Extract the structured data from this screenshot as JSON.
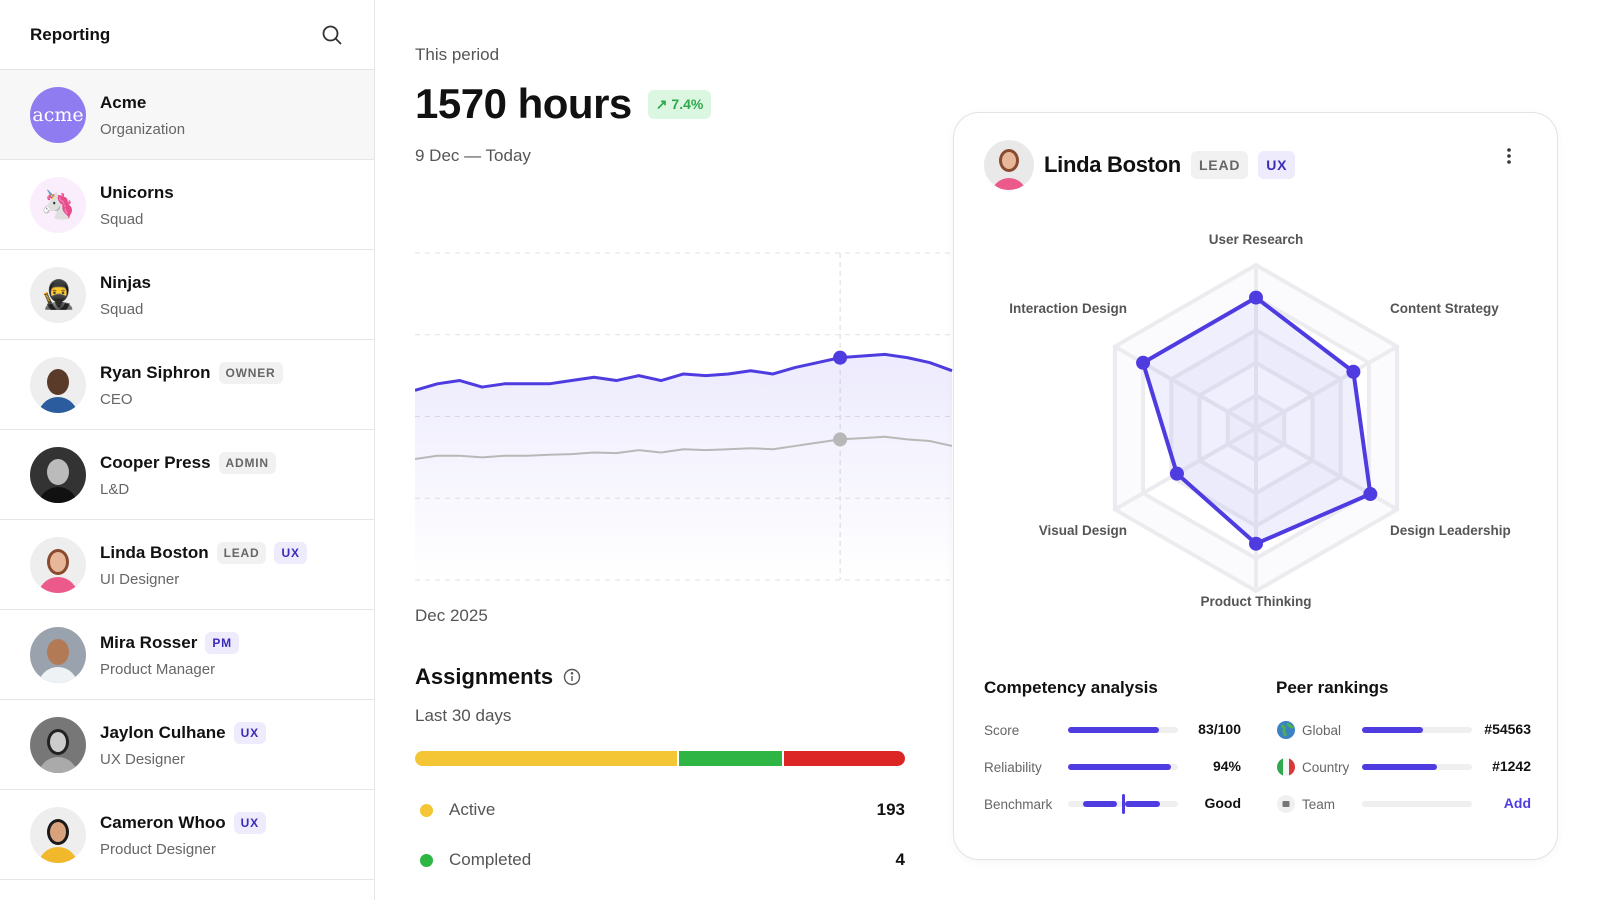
{
  "sidebar": {
    "title": "Reporting",
    "items": [
      {
        "name": "Acme",
        "subtitle": "Organization",
        "avatar_text": "acme",
        "badges": []
      },
      {
        "name": "Unicorns",
        "subtitle": "Squad",
        "avatar_icon": "🦄",
        "badges": []
      },
      {
        "name": "Ninjas",
        "subtitle": "Squad",
        "avatar_icon": "🥷",
        "badges": []
      },
      {
        "name": "Ryan Siphron",
        "subtitle": "CEO",
        "badges": [
          "OWNER"
        ]
      },
      {
        "name": "Cooper Press",
        "subtitle": "L&D",
        "badges": [
          "ADMIN"
        ]
      },
      {
        "name": "Linda Boston",
        "subtitle": "UI Designer",
        "badges": [
          "LEAD",
          "UX"
        ]
      },
      {
        "name": "Mira Rosser",
        "subtitle": "Product Manager",
        "badges": [
          "PM"
        ]
      },
      {
        "name": "Jaylon Culhane",
        "subtitle": "UX Designer",
        "badges": [
          "UX"
        ]
      },
      {
        "name": "Cameron Whoo",
        "subtitle": "Product Designer",
        "badges": [
          "UX"
        ]
      }
    ]
  },
  "main": {
    "period_label": "This period",
    "total": "1570 hours",
    "trend": "7.4%",
    "date_range": "9 Dec — Today",
    "chart_month": "Dec 2025",
    "assignments": {
      "title": "Assignments",
      "subtitle": "Last 30 days",
      "segments": [
        {
          "color": "#f4c534",
          "fraction": 0.54
        },
        {
          "color": "#2fb544",
          "fraction": 0.21
        },
        {
          "color": "#dc2626",
          "fraction": 0.25
        }
      ],
      "legend": [
        {
          "label": "Active",
          "value": "193",
          "color": "#f4c534"
        },
        {
          "label": "Completed",
          "value": "4",
          "color": "#2fb544"
        }
      ]
    }
  },
  "chart_data": {
    "type": "area",
    "xlabel": "Dec 2025",
    "ylim": [
      0,
      100
    ],
    "grid": true,
    "highlight_index": 19,
    "series": [
      {
        "color": "#4f3ce0",
        "values": [
          58,
          60,
          61,
          59,
          60,
          60,
          60,
          61,
          62,
          61,
          62.5,
          61,
          63,
          62.5,
          63,
          64,
          63,
          65,
          66.5,
          68,
          68.5,
          69,
          68,
          66.5,
          64
        ]
      },
      {
        "color": "#b8b8b8",
        "values": [
          37,
          38,
          38,
          37.5,
          38,
          38,
          38.3,
          38.5,
          39,
          38.8,
          39.7,
          39,
          40,
          39.7,
          40,
          40.3,
          40,
          41,
          42,
          43,
          43.4,
          43.8,
          43,
          42.5,
          41
        ]
      }
    ]
  },
  "profile": {
    "name": "Linda Boston",
    "badges": [
      "LEAD",
      "UX"
    ],
    "radar": {
      "type": "radar",
      "axes": [
        "User Research",
        "Content Strategy",
        "Design Leadership",
        "Product Thinking",
        "Visual Design",
        "Interaction Design"
      ],
      "values": [
        0.8,
        0.69,
        0.81,
        0.71,
        0.56,
        0.8
      ],
      "rings": 5,
      "color": "#4f3ce0"
    },
    "competency": {
      "title": "Competency analysis",
      "rows": [
        {
          "label": "Score",
          "value": "83/100",
          "fraction": 0.83
        },
        {
          "label": "Reliability",
          "value": "94%",
          "fraction": 0.94
        },
        {
          "label": "Benchmark",
          "value": "Good",
          "fraction": 0.5
        }
      ]
    },
    "peer": {
      "title": "Peer rankings",
      "rows": [
        {
          "label": "Global",
          "value": "#54563",
          "fraction": 0.55,
          "icon": "globe-icon"
        },
        {
          "label": "Country",
          "value": "#1242",
          "fraction": 0.68,
          "icon": "italy-flag-icon"
        },
        {
          "label": "Team",
          "value": "Add",
          "fraction": 0,
          "icon": "team-icon"
        }
      ]
    }
  }
}
